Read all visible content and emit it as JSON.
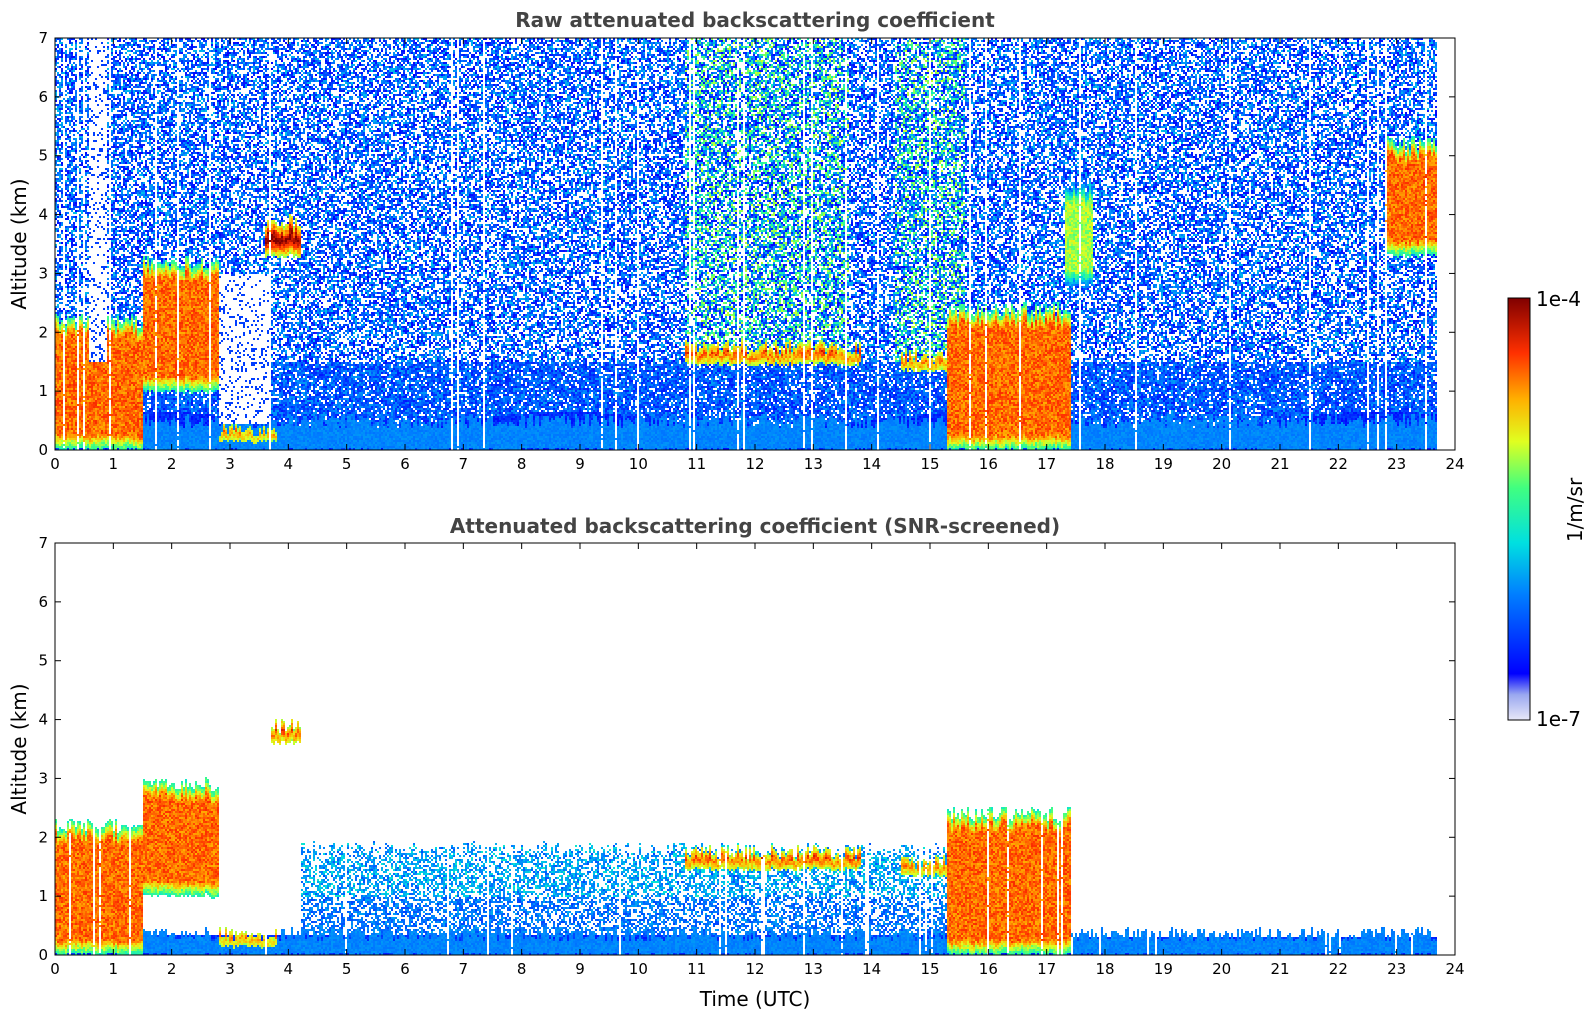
{
  "chart_data": [
    {
      "type": "heatmap",
      "title": "Raw attenuated backscattering coefficient",
      "xlabel": "",
      "ylabel": "Altitude (km)",
      "x_ticks": [
        "0",
        "1",
        "2",
        "3",
        "4",
        "5",
        "6",
        "7",
        "8",
        "9",
        "10",
        "11",
        "12",
        "13",
        "14",
        "15",
        "16",
        "17",
        "18",
        "19",
        "20",
        "21",
        "22",
        "23",
        "24"
      ],
      "y_ticks": [
        "0",
        "1",
        "2",
        "3",
        "4",
        "5",
        "6",
        "7"
      ],
      "xlim": [
        0,
        24
      ],
      "ylim": [
        0,
        7
      ],
      "features": [
        {
          "feature": "boundary layer aerosol",
          "t_start": 0,
          "t_end": 23.7,
          "alt_top_km": 0.5,
          "level": "low"
        },
        {
          "feature": "cloud",
          "t_start": 0.0,
          "t_end": 1.5,
          "alt_bottom_km": 0.0,
          "alt_top_km": 2.2,
          "level": "high"
        },
        {
          "feature": "cloud",
          "t_start": 1.5,
          "t_end": 2.8,
          "alt_bottom_km": 1.0,
          "alt_top_km": 3.2,
          "level": "high"
        },
        {
          "feature": "cloud",
          "t_start": 2.8,
          "t_end": 3.8,
          "alt_bottom_km": 0.15,
          "alt_top_km": 0.35,
          "level": "very high"
        },
        {
          "feature": "cloud",
          "t_start": 3.6,
          "t_end": 4.2,
          "alt_bottom_km": 3.3,
          "alt_top_km": 3.9,
          "level": "very high"
        },
        {
          "feature": "cloud layer",
          "t_start": 10.8,
          "t_end": 13.8,
          "alt_bottom_km": 1.45,
          "alt_top_km": 1.75,
          "level": "very high"
        },
        {
          "feature": "cloud layer",
          "t_start": 14.5,
          "t_end": 15.5,
          "alt_bottom_km": 1.35,
          "alt_top_km": 1.6,
          "level": "very high"
        },
        {
          "feature": "cloud",
          "t_start": 15.3,
          "t_end": 17.4,
          "alt_bottom_km": 0.0,
          "alt_top_km": 2.4,
          "level": "high"
        },
        {
          "feature": "cirrus",
          "t_start": 17.3,
          "t_end": 17.8,
          "alt_bottom_km": 2.8,
          "alt_top_km": 4.5,
          "level": "medium"
        },
        {
          "feature": "cirrus",
          "t_start": 22.8,
          "t_end": 23.7,
          "alt_bottom_km": 3.3,
          "alt_top_km": 5.2,
          "level": "high"
        }
      ],
      "data_gaps": [
        {
          "t_start": 0.6,
          "t_end": 0.9,
          "alt_bottom_km": 1.5,
          "alt_top_km": 7
        },
        {
          "t_start": 2.8,
          "t_end": 3.7,
          "alt_bottom_km": 0.45,
          "alt_top_km": 3.0
        },
        {
          "t_start": 23.7,
          "t_end": 24,
          "alt_bottom_km": 0,
          "alt_top_km": 7
        }
      ]
    },
    {
      "type": "heatmap",
      "title": "Attenuated backscattering coefficient (SNR-screened)",
      "xlabel": "Time (UTC)",
      "ylabel": "Altitude (km)",
      "x_ticks": [
        "0",
        "1",
        "2",
        "3",
        "4",
        "5",
        "6",
        "7",
        "8",
        "9",
        "10",
        "11",
        "12",
        "13",
        "14",
        "15",
        "16",
        "17",
        "18",
        "19",
        "20",
        "21",
        "22",
        "23",
        "24"
      ],
      "y_ticks": [
        "0",
        "1",
        "2",
        "3",
        "4",
        "5",
        "6",
        "7"
      ],
      "xlim": [
        0,
        24
      ],
      "ylim": [
        0,
        7
      ],
      "features": [
        {
          "feature": "boundary layer aerosol",
          "t_start": 0,
          "t_end": 23.7,
          "alt_top_km": 0.35,
          "level": "low"
        },
        {
          "feature": "aerosol layer",
          "t_start": 4.2,
          "t_end": 16.0,
          "alt_bottom_km": 0.35,
          "alt_top_km": 1.8,
          "level": "low"
        },
        {
          "feature": "cloud",
          "t_start": 0.0,
          "t_end": 1.5,
          "alt_bottom_km": 0.0,
          "alt_top_km": 2.2,
          "level": "high"
        },
        {
          "feature": "cloud",
          "t_start": 1.5,
          "t_end": 2.8,
          "alt_bottom_km": 1.0,
          "alt_top_km": 2.9,
          "level": "high"
        },
        {
          "feature": "cloud",
          "t_start": 2.8,
          "t_end": 3.8,
          "alt_bottom_km": 0.15,
          "alt_top_km": 0.35,
          "level": "very high"
        },
        {
          "feature": "cloud",
          "t_start": 3.7,
          "t_end": 4.2,
          "alt_bottom_km": 3.6,
          "alt_top_km": 3.9,
          "level": "very high"
        },
        {
          "feature": "cloud layer",
          "t_start": 10.8,
          "t_end": 13.8,
          "alt_bottom_km": 1.45,
          "alt_top_km": 1.75,
          "level": "very high"
        },
        {
          "feature": "cloud layer",
          "t_start": 14.5,
          "t_end": 15.5,
          "alt_bottom_km": 1.35,
          "alt_top_km": 1.6,
          "level": "very high"
        },
        {
          "feature": "cloud",
          "t_start": 15.3,
          "t_end": 17.4,
          "alt_bottom_km": 0.0,
          "alt_top_km": 2.4,
          "level": "high"
        }
      ]
    }
  ],
  "colorbar": {
    "label": "1/m/sr",
    "max_label": "1e-4",
    "min_label": "1e-7",
    "scale": "log",
    "colormap": "jet",
    "range": [
      1e-07,
      0.0001
    ]
  }
}
